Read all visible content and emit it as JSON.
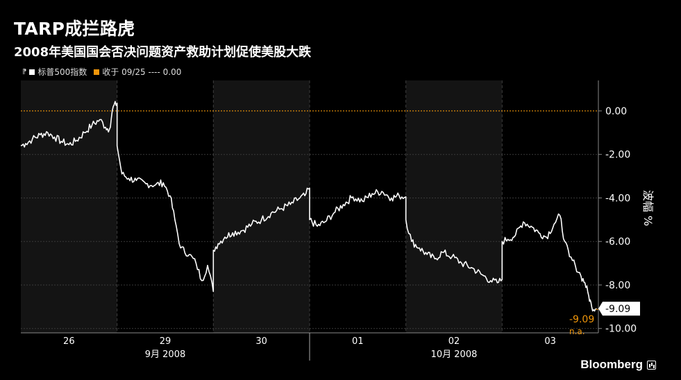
{
  "header": {
    "title": "TARP成拦路虎",
    "subtitle": "2008年美国国会否决问题资产救助计划促使美股大跌"
  },
  "legend": {
    "series_label": "标普500指数",
    "series_color": "#ffffff",
    "ref_label": "收于 09/25 ---- 0.00",
    "ref_color": "#f0960a"
  },
  "branding": {
    "name": "Bloomberg"
  },
  "chart_data": {
    "type": "line",
    "title": "TARP成拦路虎",
    "subtitle": "2008年美国国会否决问题资产救助计划促使美股大跌",
    "ylabel": "波幅 %",
    "ylim": [
      -10.2,
      1.4
    ],
    "yticks": [
      "0.00",
      "-2.00",
      "-4.00",
      "-6.00",
      "-8.00",
      "-10.00"
    ],
    "ytick_values": [
      0,
      -2,
      -4,
      -6,
      -8,
      -10
    ],
    "day_labels": [
      "26",
      "29",
      "30",
      "01",
      "02",
      "03"
    ],
    "month_labels": [
      "9月 2008",
      "10月 2008"
    ],
    "reference_line": {
      "label": "收于 09/25",
      "value": 0.0,
      "color": "#f0960a"
    },
    "last_value_label": "-9.09",
    "secondary_label": "-9.09",
    "na_label": "n.a.",
    "grid": true,
    "series": [
      {
        "name": "标普500指数",
        "color": "#ffffff",
        "points": [
          [
            0.0,
            -1.6
          ],
          [
            0.05,
            -1.5
          ],
          [
            0.12,
            -1.3
          ],
          [
            0.2,
            -1.1
          ],
          [
            0.28,
            -1.0
          ],
          [
            0.35,
            -1.2
          ],
          [
            0.42,
            -1.4
          ],
          [
            0.5,
            -1.55
          ],
          [
            0.58,
            -1.35
          ],
          [
            0.66,
            -1.0
          ],
          [
            0.74,
            -0.65
          ],
          [
            0.82,
            -0.4
          ],
          [
            0.88,
            -0.75
          ],
          [
            0.92,
            -0.85
          ],
          [
            0.96,
            0.2
          ],
          [
            1.0,
            0.35
          ],
          [
            1.0,
            -1.6
          ],
          [
            1.05,
            -2.9
          ],
          [
            1.12,
            -3.1
          ],
          [
            1.2,
            -3.2
          ],
          [
            1.3,
            -3.35
          ],
          [
            1.4,
            -3.4
          ],
          [
            1.48,
            -3.3
          ],
          [
            1.55,
            -3.9
          ],
          [
            1.6,
            -5.0
          ],
          [
            1.66,
            -6.3
          ],
          [
            1.75,
            -6.6
          ],
          [
            1.82,
            -7.0
          ],
          [
            1.88,
            -7.8
          ],
          [
            1.94,
            -7.1
          ],
          [
            2.0,
            -8.3
          ],
          [
            2.0,
            -6.4
          ],
          [
            2.05,
            -6.1
          ],
          [
            2.12,
            -5.8
          ],
          [
            2.2,
            -5.6
          ],
          [
            2.3,
            -5.5
          ],
          [
            2.4,
            -5.2
          ],
          [
            2.5,
            -5.0
          ],
          [
            2.6,
            -4.7
          ],
          [
            2.7,
            -4.5
          ],
          [
            2.8,
            -4.3
          ],
          [
            2.9,
            -4.0
          ],
          [
            2.95,
            -3.9
          ],
          [
            3.0,
            -3.55
          ],
          [
            3.0,
            -5.0
          ],
          [
            3.08,
            -5.3
          ],
          [
            3.16,
            -5.1
          ],
          [
            3.25,
            -4.7
          ],
          [
            3.35,
            -4.3
          ],
          [
            3.45,
            -3.95
          ],
          [
            3.55,
            -4.15
          ],
          [
            3.65,
            -3.8
          ],
          [
            3.75,
            -3.7
          ],
          [
            3.85,
            -4.0
          ],
          [
            3.93,
            -3.9
          ],
          [
            4.0,
            -3.95
          ],
          [
            4.0,
            -5.0
          ],
          [
            4.06,
            -6.0
          ],
          [
            4.14,
            -6.3
          ],
          [
            4.22,
            -6.6
          ],
          [
            4.3,
            -6.8
          ],
          [
            4.38,
            -6.5
          ],
          [
            4.48,
            -6.7
          ],
          [
            4.58,
            -7.0
          ],
          [
            4.68,
            -7.2
          ],
          [
            4.78,
            -7.5
          ],
          [
            4.88,
            -7.8
          ],
          [
            4.95,
            -7.9
          ],
          [
            5.0,
            -7.75
          ],
          [
            5.0,
            -6.0
          ],
          [
            5.06,
            -5.9
          ],
          [
            5.14,
            -5.7
          ],
          [
            5.22,
            -5.1
          ],
          [
            5.3,
            -5.3
          ],
          [
            5.38,
            -5.6
          ],
          [
            5.46,
            -5.8
          ],
          [
            5.54,
            -5.2
          ],
          [
            5.6,
            -4.8
          ],
          [
            5.65,
            -6.0
          ],
          [
            5.7,
            -6.7
          ],
          [
            5.76,
            -7.1
          ],
          [
            5.82,
            -7.6
          ],
          [
            5.86,
            -7.9
          ],
          [
            5.9,
            -8.5
          ],
          [
            5.93,
            -9.0
          ],
          [
            5.97,
            -9.09
          ]
        ]
      }
    ]
  }
}
